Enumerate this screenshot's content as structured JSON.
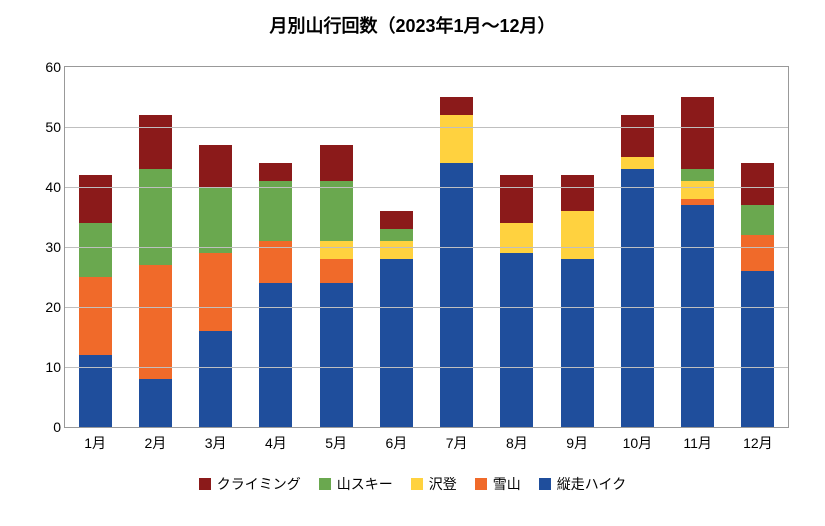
{
  "chart": {
    "type": "stacked-bar",
    "title": "月別山行回数（2023年1月～12月）",
    "title_fontsize": 18,
    "label_fontsize": 14,
    "tick_fontsize": 14,
    "background_color": "#ffffff",
    "plot_border_color": "#999999",
    "grid_color": "#bfbfbf",
    "ylim": [
      0,
      60
    ],
    "ytick_step": 10,
    "yticks": [
      0,
      10,
      20,
      30,
      40,
      50,
      60
    ],
    "bar_width": 0.55,
    "categories": [
      "1月",
      "2月",
      "3月",
      "4月",
      "5月",
      "6月",
      "7月",
      "8月",
      "9月",
      "10月",
      "11月",
      "12月"
    ],
    "series": [
      {
        "key": "climbing",
        "label": "クライミング",
        "color": "#8b1a1a"
      },
      {
        "key": "ski",
        "label": "山スキー",
        "color": "#6aa84f"
      },
      {
        "key": "river",
        "label": "沢登",
        "color": "#ffd23f"
      },
      {
        "key": "snow",
        "label": "雪山",
        "color": "#f06a2a"
      },
      {
        "key": "hike",
        "label": "縦走ハイク",
        "color": "#1f4e9c"
      }
    ],
    "stack_order": [
      "hike",
      "snow",
      "river",
      "ski",
      "climbing"
    ],
    "data": {
      "hike": [
        12,
        8,
        16,
        24,
        24,
        28,
        44,
        29,
        28,
        43,
        37,
        26
      ],
      "snow": [
        13,
        19,
        13,
        7,
        4,
        0,
        0,
        0,
        0,
        0,
        1,
        6
      ],
      "river": [
        0,
        0,
        0,
        0,
        3,
        3,
        8,
        5,
        8,
        2,
        3,
        0
      ],
      "ski": [
        9,
        16,
        11,
        10,
        10,
        2,
        0,
        0,
        0,
        0,
        2,
        5
      ],
      "climbing": [
        8,
        9,
        7,
        3,
        6,
        3,
        3,
        8,
        6,
        7,
        12,
        7
      ]
    }
  }
}
